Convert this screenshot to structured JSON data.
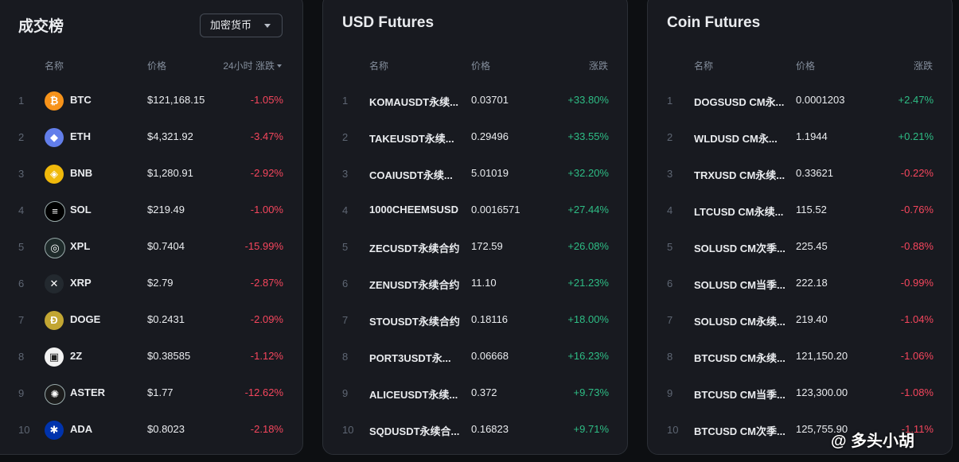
{
  "leaderboard": {
    "title": "成交榜",
    "category_dropdown": "加密货币",
    "headers": {
      "name": "名称",
      "price": "价格",
      "change": "24小时 涨跌"
    },
    "rows": [
      {
        "rank": "1",
        "symbol": "BTC",
        "price": "$121,168.15",
        "change": "-1.05%",
        "trend": "down",
        "icon": "btc-icon",
        "color": "#f7931a"
      },
      {
        "rank": "2",
        "symbol": "ETH",
        "price": "$4,321.92",
        "change": "-3.47%",
        "trend": "down",
        "icon": "eth-icon",
        "color": "#627eea"
      },
      {
        "rank": "3",
        "symbol": "BNB",
        "price": "$1,280.91",
        "change": "-2.92%",
        "trend": "down",
        "icon": "bnb-icon",
        "color": "#f0b90b"
      },
      {
        "rank": "4",
        "symbol": "SOL",
        "price": "$219.49",
        "change": "-1.00%",
        "trend": "down",
        "icon": "sol-icon",
        "color": "#000000"
      },
      {
        "rank": "5",
        "symbol": "XPL",
        "price": "$0.7404",
        "change": "-15.99%",
        "trend": "down",
        "icon": "xpl-icon",
        "color": "#1e2a2a"
      },
      {
        "rank": "6",
        "symbol": "XRP",
        "price": "$2.79",
        "change": "-2.87%",
        "trend": "down",
        "icon": "xrp-icon",
        "color": "#23292f"
      },
      {
        "rank": "7",
        "symbol": "DOGE",
        "price": "$0.2431",
        "change": "-2.09%",
        "trend": "down",
        "icon": "doge-icon",
        "color": "#c2a633"
      },
      {
        "rank": "8",
        "symbol": "2Z",
        "price": "$0.38585",
        "change": "-1.12%",
        "trend": "down",
        "icon": "2z-icon",
        "color": "#f2f2f2"
      },
      {
        "rank": "9",
        "symbol": "ASTER",
        "price": "$1.77",
        "change": "-12.62%",
        "trend": "down",
        "icon": "aster-icon",
        "color": "#1c1c1c"
      },
      {
        "rank": "10",
        "symbol": "ADA",
        "price": "$0.8023",
        "change": "-2.18%",
        "trend": "down",
        "icon": "ada-icon",
        "color": "#0033ad"
      }
    ]
  },
  "usd_futures": {
    "title": "USD Futures",
    "headers": {
      "name": "名称",
      "price": "价格",
      "change": "涨跌"
    },
    "rows": [
      {
        "rank": "1",
        "symbol": "KOMAUSDT永续...",
        "price": "0.03701",
        "change": "+33.80%",
        "trend": "up"
      },
      {
        "rank": "2",
        "symbol": "TAKEUSDT永续...",
        "price": "0.29496",
        "change": "+33.55%",
        "trend": "up"
      },
      {
        "rank": "3",
        "symbol": "COAIUSDT永续...",
        "price": "5.01019",
        "change": "+32.20%",
        "trend": "up"
      },
      {
        "rank": "4",
        "symbol": "1000CHEEMSUSD",
        "price": "0.0016571",
        "change": "+27.44%",
        "trend": "up"
      },
      {
        "rank": "5",
        "symbol": "ZECUSDT永续合约",
        "price": "172.59",
        "change": "+26.08%",
        "trend": "up"
      },
      {
        "rank": "6",
        "symbol": "ZENUSDT永续合约",
        "price": "11.10",
        "change": "+21.23%",
        "trend": "up"
      },
      {
        "rank": "7",
        "symbol": "STOUSDT永续合约",
        "price": "0.18116",
        "change": "+18.00%",
        "trend": "up"
      },
      {
        "rank": "8",
        "symbol": "PORT3USDT永...",
        "price": "0.06668",
        "change": "+16.23%",
        "trend": "up"
      },
      {
        "rank": "9",
        "symbol": "ALICEUSDT永续...",
        "price": "0.372",
        "change": "+9.73%",
        "trend": "up"
      },
      {
        "rank": "10",
        "symbol": "SQDUSDT永续合...",
        "price": "0.16823",
        "change": "+9.71%",
        "trend": "up"
      }
    ]
  },
  "coin_futures": {
    "title": "Coin Futures",
    "headers": {
      "name": "名称",
      "price": "价格",
      "change": "涨跌"
    },
    "rows": [
      {
        "rank": "1",
        "symbol": "DOGSUSD CM永...",
        "price": "0.0001203",
        "change": "+2.47%",
        "trend": "up"
      },
      {
        "rank": "2",
        "symbol": "WLDUSD CM永...",
        "price": "1.1944",
        "change": "+0.21%",
        "trend": "up"
      },
      {
        "rank": "3",
        "symbol": "TRXUSD CM永续...",
        "price": "0.33621",
        "change": "-0.22%",
        "trend": "down"
      },
      {
        "rank": "4",
        "symbol": "LTCUSD CM永续...",
        "price": "115.52",
        "change": "-0.76%",
        "trend": "down"
      },
      {
        "rank": "5",
        "symbol": "SOLUSD CM次季...",
        "price": "225.45",
        "change": "-0.88%",
        "trend": "down"
      },
      {
        "rank": "6",
        "symbol": "SOLUSD CM当季...",
        "price": "222.18",
        "change": "-0.99%",
        "trend": "down"
      },
      {
        "rank": "7",
        "symbol": "SOLUSD CM永续...",
        "price": "219.40",
        "change": "-1.04%",
        "trend": "down"
      },
      {
        "rank": "8",
        "symbol": "BTCUSD CM永续...",
        "price": "121,150.20",
        "change": "-1.06%",
        "trend": "down"
      },
      {
        "rank": "9",
        "symbol": "BTCUSD CM当季...",
        "price": "123,300.00",
        "change": "-1.08%",
        "trend": "down"
      },
      {
        "rank": "10",
        "symbol": "BTCUSD CM次季...",
        "price": "125,755.90",
        "change": "-1.11%",
        "trend": "down"
      }
    ]
  },
  "watermark": "@ 多头小胡",
  "colors": {
    "up": "#2ebd85",
    "down": "#f6465d",
    "panel": "#181a20",
    "background": "#0d0f12"
  }
}
